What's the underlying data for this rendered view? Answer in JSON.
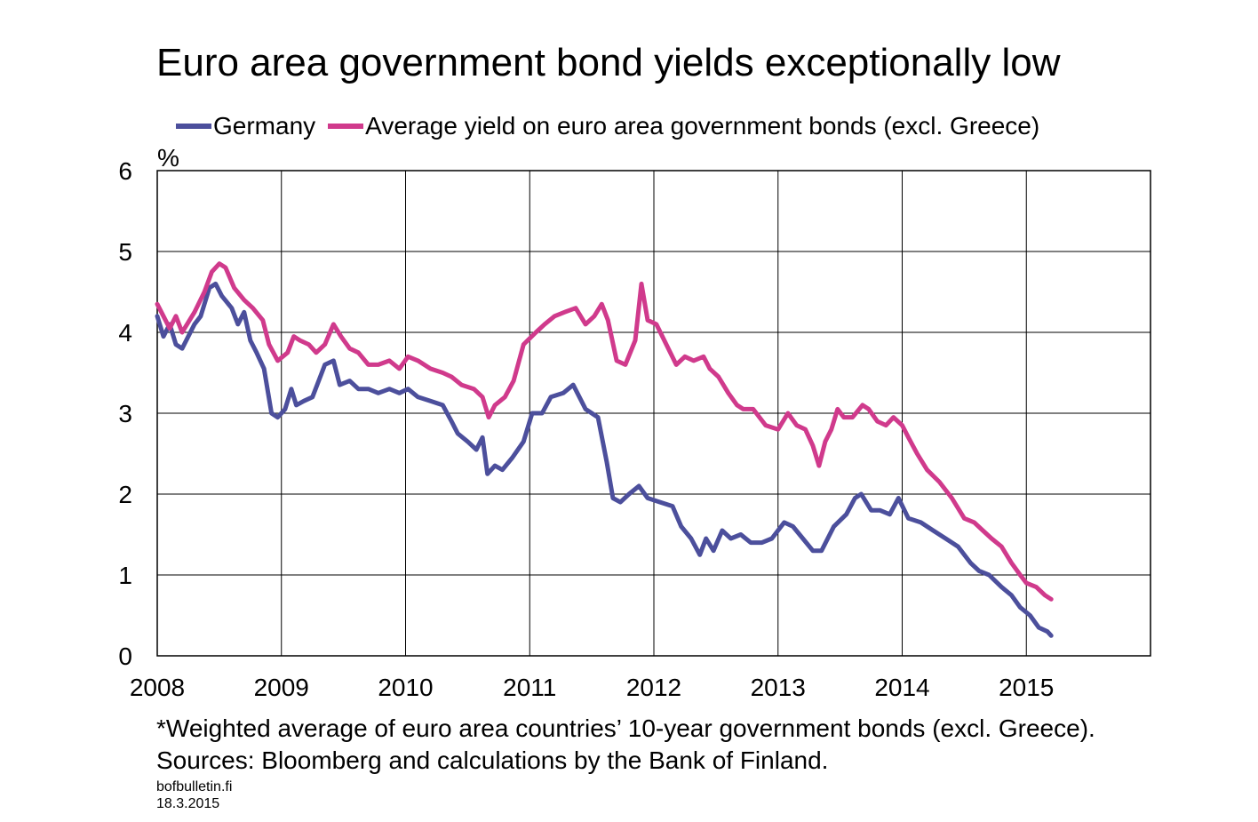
{
  "chart_data": {
    "type": "line",
    "title": "Euro area government bond yields exceptionally low",
    "ylabel": "%",
    "xlabel": "",
    "xlim": [
      2008,
      2016
    ],
    "ylim": [
      0,
      6
    ],
    "y_ticks": [
      "0",
      "1",
      "2",
      "3",
      "4",
      "5",
      "6"
    ],
    "x_ticks": [
      "2008",
      "2009",
      "2010",
      "2011",
      "2012",
      "2013",
      "2014",
      "2015"
    ],
    "grid": true,
    "legend_position": "top",
    "series": [
      {
        "name": "Germany",
        "color": "#4c4f9c",
        "x": [
          2008.0,
          2008.05,
          2008.1,
          2008.15,
          2008.2,
          2008.3,
          2008.35,
          2008.42,
          2008.47,
          2008.52,
          2008.6,
          2008.65,
          2008.7,
          2008.75,
          2008.8,
          2008.86,
          2008.92,
          2008.97,
          2009.03,
          2009.08,
          2009.12,
          2009.18,
          2009.25,
          2009.3,
          2009.35,
          2009.42,
          2009.47,
          2009.55,
          2009.62,
          2009.7,
          2009.78,
          2009.87,
          2009.95,
          2010.02,
          2010.1,
          2010.2,
          2010.3,
          2010.37,
          2010.42,
          2010.5,
          2010.57,
          2010.62,
          2010.66,
          2010.72,
          2010.78,
          2010.86,
          2010.95,
          2011.02,
          2011.1,
          2011.17,
          2011.27,
          2011.35,
          2011.45,
          2011.55,
          2011.62,
          2011.67,
          2011.73,
          2011.8,
          2011.88,
          2011.95,
          2012.05,
          2012.15,
          2012.22,
          2012.3,
          2012.37,
          2012.42,
          2012.48,
          2012.55,
          2012.62,
          2012.7,
          2012.78,
          2012.87,
          2012.95,
          2013.05,
          2013.12,
          2013.2,
          2013.28,
          2013.35,
          2013.45,
          2013.55,
          2013.62,
          2013.67,
          2013.75,
          2013.82,
          2013.9,
          2013.97,
          2014.05,
          2014.15,
          2014.25,
          2014.35,
          2014.45,
          2014.55,
          2014.62,
          2014.7,
          2014.8,
          2014.88,
          2014.95,
          2015.03,
          2015.1,
          2015.17,
          2015.2
        ],
        "values": [
          4.2,
          3.95,
          4.1,
          3.85,
          3.8,
          4.1,
          4.2,
          4.55,
          4.6,
          4.45,
          4.3,
          4.1,
          4.25,
          3.9,
          3.75,
          3.55,
          3.0,
          2.95,
          3.05,
          3.3,
          3.1,
          3.15,
          3.2,
          3.4,
          3.6,
          3.65,
          3.35,
          3.4,
          3.3,
          3.3,
          3.25,
          3.3,
          3.25,
          3.3,
          3.2,
          3.15,
          3.1,
          2.9,
          2.75,
          2.65,
          2.55,
          2.7,
          2.25,
          2.35,
          2.3,
          2.45,
          2.65,
          3.0,
          3.0,
          3.2,
          3.25,
          3.35,
          3.05,
          2.95,
          2.4,
          1.95,
          1.9,
          2.0,
          2.1,
          1.95,
          1.9,
          1.85,
          1.6,
          1.45,
          1.25,
          1.45,
          1.3,
          1.55,
          1.45,
          1.5,
          1.4,
          1.4,
          1.45,
          1.65,
          1.6,
          1.45,
          1.3,
          1.3,
          1.6,
          1.75,
          1.95,
          2.0,
          1.8,
          1.8,
          1.75,
          1.95,
          1.7,
          1.65,
          1.55,
          1.45,
          1.35,
          1.15,
          1.05,
          1.0,
          0.85,
          0.75,
          0.6,
          0.5,
          0.35,
          0.3,
          0.25
        ]
      },
      {
        "name": "Average yield on euro area government bonds (excl. Greece)",
        "color": "#d03a8c",
        "x": [
          2008.0,
          2008.05,
          2008.1,
          2008.15,
          2008.2,
          2008.3,
          2008.38,
          2008.44,
          2008.5,
          2008.55,
          2008.62,
          2008.7,
          2008.77,
          2008.85,
          2008.9,
          2008.97,
          2009.05,
          2009.1,
          2009.15,
          2009.22,
          2009.28,
          2009.35,
          2009.42,
          2009.48,
          2009.55,
          2009.62,
          2009.7,
          2009.78,
          2009.87,
          2009.95,
          2010.02,
          2010.1,
          2010.2,
          2010.3,
          2010.37,
          2010.45,
          2010.55,
          2010.62,
          2010.67,
          2010.72,
          2010.8,
          2010.87,
          2010.95,
          2011.05,
          2011.12,
          2011.2,
          2011.28,
          2011.37,
          2011.45,
          2011.52,
          2011.58,
          2011.63,
          2011.7,
          2011.77,
          2011.85,
          2011.9,
          2011.95,
          2012.02,
          2012.1,
          2012.18,
          2012.25,
          2012.32,
          2012.4,
          2012.45,
          2012.52,
          2012.6,
          2012.67,
          2012.72,
          2012.8,
          2012.9,
          2013.0,
          2013.08,
          2013.15,
          2013.22,
          2013.28,
          2013.33,
          2013.38,
          2013.43,
          2013.48,
          2013.53,
          2013.6,
          2013.68,
          2013.73,
          2013.8,
          2013.87,
          2013.93,
          2014.0,
          2014.05,
          2014.12,
          2014.2,
          2014.3,
          2014.4,
          2014.5,
          2014.58,
          2014.65,
          2014.72,
          2014.8,
          2014.88,
          2014.95,
          2015.0,
          2015.08,
          2015.15,
          2015.2
        ],
        "values": [
          4.35,
          4.2,
          4.05,
          4.2,
          4.0,
          4.25,
          4.5,
          4.75,
          4.85,
          4.8,
          4.55,
          4.4,
          4.3,
          4.15,
          3.85,
          3.65,
          3.75,
          3.95,
          3.9,
          3.85,
          3.75,
          3.85,
          4.1,
          3.95,
          3.8,
          3.75,
          3.6,
          3.6,
          3.65,
          3.55,
          3.7,
          3.65,
          3.55,
          3.5,
          3.45,
          3.35,
          3.3,
          3.2,
          2.95,
          3.1,
          3.2,
          3.4,
          3.85,
          4.0,
          4.1,
          4.2,
          4.25,
          4.3,
          4.1,
          4.2,
          4.35,
          4.15,
          3.65,
          3.6,
          3.9,
          4.6,
          4.15,
          4.1,
          3.85,
          3.6,
          3.7,
          3.65,
          3.7,
          3.55,
          3.45,
          3.25,
          3.1,
          3.05,
          3.05,
          2.85,
          2.8,
          3.0,
          2.85,
          2.8,
          2.6,
          2.35,
          2.65,
          2.8,
          3.05,
          2.95,
          2.95,
          3.1,
          3.05,
          2.9,
          2.85,
          2.95,
          2.85,
          2.7,
          2.5,
          2.3,
          2.15,
          1.95,
          1.7,
          1.65,
          1.55,
          1.45,
          1.35,
          1.15,
          1.0,
          0.9,
          0.85,
          0.75,
          0.7
        ]
      }
    ]
  },
  "footnote": {
    "line1": "*Weighted average of euro area countries’ 10-year government bonds (excl. Greece).",
    "line2": "Sources: Bloomberg and calculations by the Bank of Finland."
  },
  "credit": {
    "site": "bofbulletin.fi",
    "date": "18.3.2015"
  }
}
